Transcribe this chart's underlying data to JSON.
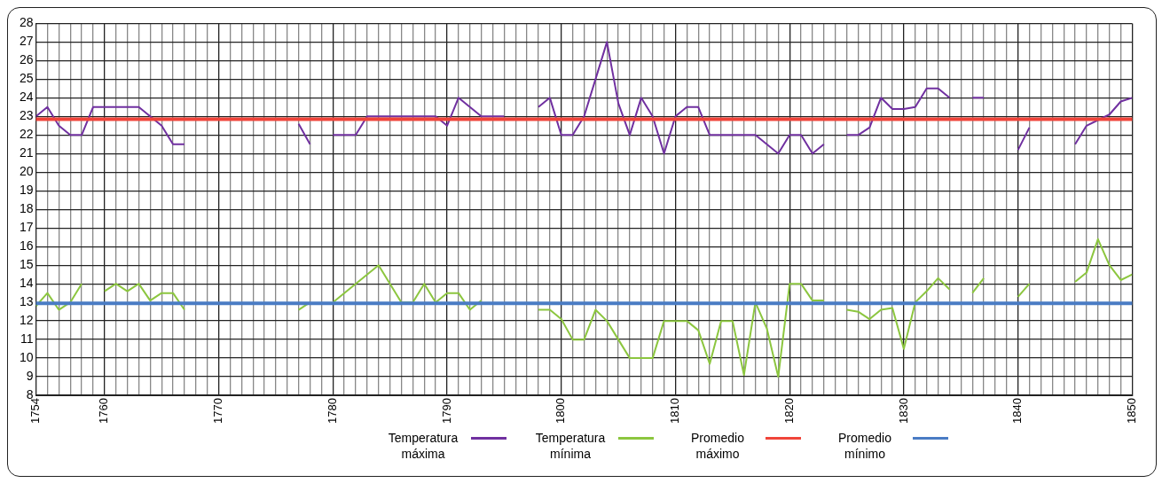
{
  "chart_data": {
    "type": "line",
    "x": [
      1754,
      1755,
      1756,
      1757,
      1758,
      1759,
      1760,
      1761,
      1762,
      1763,
      1764,
      1765,
      1766,
      1767,
      1768,
      1769,
      1770,
      1771,
      1772,
      1773,
      1774,
      1775,
      1776,
      1777,
      1778,
      1779,
      1780,
      1781,
      1782,
      1783,
      1784,
      1785,
      1786,
      1787,
      1788,
      1789,
      1790,
      1791,
      1792,
      1793,
      1794,
      1795,
      1796,
      1797,
      1798,
      1799,
      1800,
      1801,
      1802,
      1803,
      1804,
      1805,
      1806,
      1807,
      1808,
      1809,
      1810,
      1811,
      1812,
      1813,
      1814,
      1815,
      1816,
      1817,
      1818,
      1819,
      1820,
      1821,
      1822,
      1823,
      1824,
      1825,
      1826,
      1827,
      1828,
      1829,
      1830,
      1831,
      1832,
      1833,
      1834,
      1835,
      1836,
      1837,
      1838,
      1839,
      1840,
      1841,
      1842,
      1843,
      1844,
      1845,
      1846,
      1847,
      1848,
      1849,
      1850
    ],
    "series": [
      {
        "name": "Temperatura máxima",
        "color": "#7030a0",
        "values": [
          23,
          23.5,
          22.5,
          22,
          22,
          23.5,
          23.5,
          23.5,
          23.5,
          23.5,
          23,
          22.5,
          21.5,
          21.5,
          null,
          null,
          null,
          null,
          null,
          null,
          null,
          null,
          null,
          22.6,
          21.5,
          null,
          22,
          22,
          22,
          23,
          23,
          23,
          23,
          23,
          23,
          23,
          22.5,
          24,
          23.5,
          23,
          23,
          23,
          null,
          null,
          23.5,
          24,
          22,
          22,
          23,
          25,
          27,
          23.7,
          22,
          24,
          23,
          21,
          23,
          23.5,
          23.5,
          22,
          22,
          22,
          22,
          22,
          21.5,
          21,
          22,
          22,
          21,
          21.5,
          null,
          22,
          22,
          22.4,
          24,
          23.4,
          23.4,
          23.5,
          24.5,
          24.5,
          24,
          null,
          24,
          24,
          null,
          null,
          21.2,
          22.4,
          null,
          null,
          null,
          21.5,
          22.5,
          22.8,
          23.1,
          23.8,
          24
        ]
      },
      {
        "name": "Temperatura mínima",
        "color": "#8cc63f",
        "values": [
          12.8,
          13.5,
          12.6,
          13,
          14,
          null,
          13.6,
          14,
          13.6,
          14,
          13.1,
          13.5,
          13.5,
          12.6,
          null,
          null,
          null,
          null,
          null,
          null,
          null,
          null,
          null,
          12.6,
          13,
          null,
          13,
          13.5,
          14,
          14.5,
          15,
          14,
          13,
          13,
          14,
          13,
          13.5,
          13.5,
          12.6,
          13.1,
          null,
          null,
          null,
          null,
          12.6,
          12.6,
          12.1,
          11,
          11,
          12.6,
          12,
          11,
          10,
          10,
          10,
          12,
          12,
          12,
          11.5,
          9.7,
          12,
          12,
          9.1,
          13,
          11.6,
          9,
          14,
          14,
          13.1,
          13.1,
          null,
          12.6,
          12.5,
          12.1,
          12.6,
          12.7,
          10.5,
          13,
          13.6,
          14.3,
          13.7,
          null,
          13.5,
          14.3,
          null,
          null,
          13.3,
          14,
          null,
          null,
          null,
          14.1,
          14.6,
          16.4,
          15,
          14.2,
          14.5
        ]
      }
    ],
    "ref_lines": [
      {
        "axis": "y",
        "value": 22.85,
        "label": "Promedio máximo",
        "color": "#f0443a"
      },
      {
        "axis": "y",
        "value": 12.95,
        "label": "Promedio mínimo",
        "color": "#4a7cc4"
      }
    ],
    "xlim": [
      1754,
      1850
    ],
    "xticks": [
      1754,
      {
        "value": 1755,
        "label": null
      },
      {
        "value": 1756,
        "label": null
      },
      {
        "value": 1757,
        "label": null
      },
      {
        "value": 1758,
        "label": null
      },
      {
        "value": 1759,
        "label": null
      },
      1760,
      {
        "value": 1761,
        "label": null
      },
      {
        "value": 1762,
        "label": null
      },
      {
        "value": 1763,
        "label": null
      },
      {
        "value": 1764,
        "label": null
      },
      {
        "value": 1765,
        "label": null
      },
      {
        "value": 1766,
        "label": null
      },
      {
        "value": 1767,
        "label": null
      },
      {
        "value": 1768,
        "label": null
      },
      {
        "value": 1769,
        "label": null
      },
      1770,
      {
        "value": 1771,
        "label": null
      },
      {
        "value": 1772,
        "label": null
      },
      {
        "value": 1773,
        "label": null
      },
      {
        "value": 1774,
        "label": null
      },
      {
        "value": 1775,
        "label": null
      },
      {
        "value": 1776,
        "label": null
      },
      {
        "value": 1777,
        "label": null
      },
      {
        "value": 1778,
        "label": null
      },
      {
        "value": 1779,
        "label": null
      },
      1780,
      {
        "value": 1781,
        "label": null
      },
      {
        "value": 1782,
        "label": null
      },
      {
        "value": 1783,
        "label": null
      },
      {
        "value": 1784,
        "label": null
      },
      {
        "value": 1785,
        "label": null
      },
      {
        "value": 1786,
        "label": null
      },
      {
        "value": 1787,
        "label": null
      },
      {
        "value": 1788,
        "label": null
      },
      {
        "value": 1789,
        "label": null
      },
      1790,
      {
        "value": 1791,
        "label": null
      },
      {
        "value": 1792,
        "label": null
      },
      {
        "value": 1793,
        "label": null
      },
      {
        "value": 1794,
        "label": null
      },
      {
        "value": 1795,
        "label": null
      },
      {
        "value": 1796,
        "label": null
      },
      {
        "value": 1797,
        "label": null
      },
      {
        "value": 1798,
        "label": null
      },
      {
        "value": 1799,
        "label": null
      },
      1800,
      {
        "value": 1801,
        "label": null
      },
      {
        "value": 1802,
        "label": null
      },
      {
        "value": 1803,
        "label": null
      },
      {
        "value": 1804,
        "label": null
      },
      {
        "value": 1805,
        "label": null
      },
      {
        "value": 1806,
        "label": null
      },
      {
        "value": 1807,
        "label": null
      },
      {
        "value": 1808,
        "label": null
      },
      {
        "value": 1809,
        "label": null
      },
      1810,
      {
        "value": 1811,
        "label": null
      },
      {
        "value": 1812,
        "label": null
      },
      {
        "value": 1813,
        "label": null
      },
      {
        "value": 1814,
        "label": null
      },
      {
        "value": 1815,
        "label": null
      },
      {
        "value": 1816,
        "label": null
      },
      {
        "value": 1817,
        "label": null
      },
      {
        "value": 1818,
        "label": null
      },
      {
        "value": 1819,
        "label": null
      },
      1820,
      {
        "value": 1821,
        "label": null
      },
      {
        "value": 1822,
        "label": null
      },
      {
        "value": 1823,
        "label": null
      },
      {
        "value": 1824,
        "label": null
      },
      {
        "value": 1825,
        "label": null
      },
      {
        "value": 1826,
        "label": null
      },
      {
        "value": 1827,
        "label": null
      },
      {
        "value": 1828,
        "label": null
      },
      {
        "value": 1829,
        "label": null
      },
      1830,
      {
        "value": 1831,
        "label": null
      },
      {
        "value": 1832,
        "label": null
      },
      {
        "value": 1833,
        "label": null
      },
      {
        "value": 1834,
        "label": null
      },
      {
        "value": 1835,
        "label": null
      },
      {
        "value": 1836,
        "label": null
      },
      {
        "value": 1837,
        "label": null
      },
      {
        "value": 1838,
        "label": null
      },
      {
        "value": 1839,
        "label": null
      },
      1840,
      {
        "value": 1841,
        "label": null
      },
      {
        "value": 1842,
        "label": null
      },
      {
        "value": 1843,
        "label": null
      },
      {
        "value": 1844,
        "label": null
      },
      {
        "value": 1845,
        "label": null
      },
      {
        "value": 1846,
        "label": null
      },
      {
        "value": 1847,
        "label": null
      },
      {
        "value": 1848,
        "label": null
      },
      {
        "value": 1849,
        "label": null
      },
      1850
    ],
    "ylim": [
      8,
      28
    ],
    "yticks": [
      8,
      9,
      10,
      11,
      12,
      13,
      14,
      15,
      16,
      17,
      18,
      19,
      20,
      21,
      22,
      23,
      24,
      25,
      26,
      27,
      28
    ],
    "grid": true,
    "legend": "bottom",
    "marker": "none",
    "line_style": "solid"
  }
}
